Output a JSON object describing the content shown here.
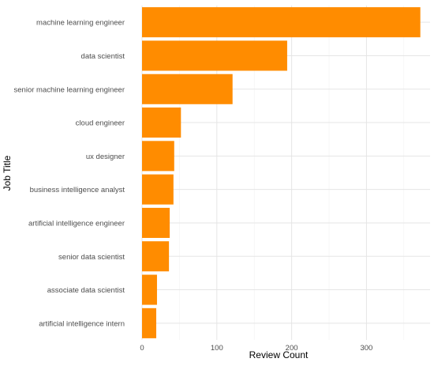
{
  "chart_data": {
    "type": "bar",
    "orientation": "horizontal",
    "categories": [
      "machine learning engineer",
      "data scientist",
      "senior machine learning engineer",
      "cloud engineer",
      "ux designer",
      "business intelligence analyst",
      "artificial intelligence engineer",
      "senior data scientist",
      "associate data scientist",
      "artificial intelligence intern"
    ],
    "values": [
      372,
      194,
      121,
      52,
      43,
      42,
      37,
      36,
      20,
      19
    ],
    "xlabel": "Review Count",
    "ylabel": "Job Title",
    "xlim": [
      0,
      385
    ],
    "xticks": [
      0,
      100,
      200,
      300
    ],
    "grid": true,
    "bar_color": "#FF8C00",
    "grid_major_color": "#e5e5e5",
    "grid_minor_color": "#f2f2f2",
    "label_color": "#4d4d4d",
    "title_color": "#000000"
  }
}
